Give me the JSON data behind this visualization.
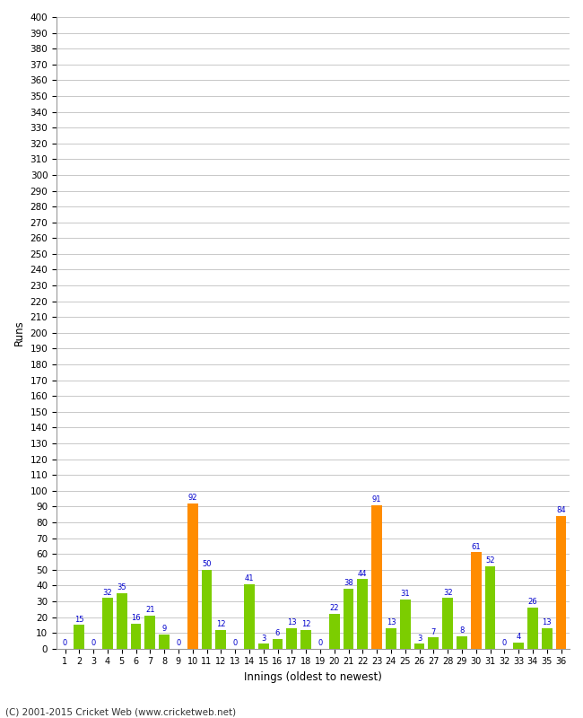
{
  "innings": [
    1,
    2,
    3,
    4,
    5,
    6,
    7,
    8,
    9,
    10,
    11,
    12,
    13,
    14,
    15,
    16,
    17,
    18,
    19,
    20,
    21,
    22,
    23,
    24,
    25,
    26,
    27,
    28,
    29,
    30,
    31,
    32,
    33,
    34,
    35,
    36
  ],
  "values": [
    0,
    15,
    0,
    32,
    35,
    16,
    21,
    9,
    0,
    92,
    50,
    12,
    0,
    41,
    3,
    6,
    13,
    12,
    0,
    22,
    38,
    44,
    91,
    13,
    31,
    3,
    7,
    32,
    8,
    61,
    52,
    0,
    4,
    26,
    13,
    84
  ],
  "colors": [
    "#ff8c00",
    "#7ccd00",
    "#ff8c00",
    "#7ccd00",
    "#7ccd00",
    "#7ccd00",
    "#7ccd00",
    "#7ccd00",
    "#ff8c00",
    "#ff8c00",
    "#7ccd00",
    "#7ccd00",
    "#ff8c00",
    "#7ccd00",
    "#7ccd00",
    "#7ccd00",
    "#7ccd00",
    "#7ccd00",
    "#ff8c00",
    "#7ccd00",
    "#7ccd00",
    "#7ccd00",
    "#ff8c00",
    "#7ccd00",
    "#7ccd00",
    "#7ccd00",
    "#7ccd00",
    "#7ccd00",
    "#7ccd00",
    "#ff8c00",
    "#7ccd00",
    "#ff8c00",
    "#7ccd00",
    "#7ccd00",
    "#7ccd00",
    "#ff8c00"
  ],
  "xlabel": "Innings (oldest to newest)",
  "ylabel": "Runs",
  "ylim": [
    0,
    400
  ],
  "ytick_step": 10,
  "footer": "(C) 2001-2015 Cricket Web (www.cricketweb.net)",
  "label_color": "#0000cc",
  "bar_green": "#7ccd00",
  "bar_orange": "#ff8c00",
  "grid_color": "#c8c8c8",
  "bg_color": "#ffffff"
}
